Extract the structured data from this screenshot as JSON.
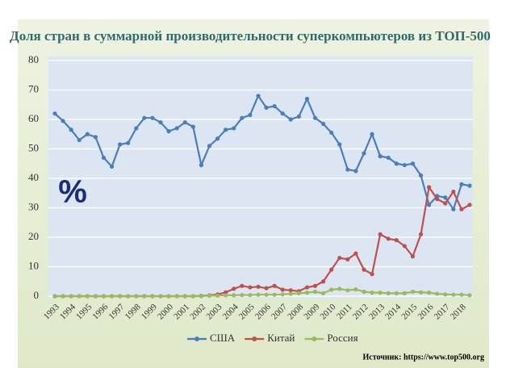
{
  "chart_data": {
    "type": "line",
    "title": "Доля стран в суммарной производительности суперкомпьютеров из ТОП-500",
    "annotation": "%",
    "source": "Источник: https://www.top500.org",
    "categories": [
      "1993",
      null,
      "1994",
      null,
      "1995",
      null,
      "1996",
      null,
      "1997",
      null,
      "1998",
      null,
      "1999",
      null,
      "2000",
      null,
      "2001",
      null,
      "2002",
      null,
      "2003",
      null,
      "2004",
      null,
      "2005",
      null,
      "2006",
      null,
      "2007",
      null,
      "2008",
      null,
      "2009",
      null,
      "2010",
      null,
      "2011",
      null,
      "2012",
      null,
      "2013",
      null,
      "2014",
      null,
      "2015",
      null,
      "2016",
      null,
      "2017",
      null,
      "2018",
      null
    ],
    "series": [
      {
        "name": "США",
        "color": "#4a7ebb",
        "values": [
          62,
          59.5,
          56.5,
          53,
          55,
          54,
          47,
          44,
          51.5,
          52,
          57,
          60.5,
          60.5,
          59,
          56,
          57,
          59,
          57.5,
          44.5,
          51,
          53.5,
          56.5,
          57,
          60.5,
          61.5,
          68,
          64,
          64.5,
          62,
          60,
          61,
          67,
          60.5,
          58.5,
          55.5,
          51.5,
          43,
          42.5,
          48.5,
          55,
          47.5,
          47,
          45,
          44.5,
          45,
          41,
          31,
          34,
          33.5,
          29.5,
          38,
          37.5
        ]
      },
      {
        "name": "Китай",
        "color": "#c0504d",
        "values": [
          0,
          0,
          0,
          0,
          0,
          0,
          0,
          0,
          0,
          0,
          0,
          0,
          0,
          0,
          0,
          0,
          0,
          0,
          0.1,
          0.3,
          0.6,
          1.3,
          2.5,
          3.5,
          3,
          3.2,
          2.7,
          3.5,
          2.2,
          2,
          1.7,
          3,
          3.5,
          5,
          9,
          13,
          12.5,
          14.5,
          9,
          7.5,
          21,
          19.5,
          19,
          17,
          13.5,
          21,
          37,
          33,
          31.5,
          35.5,
          29.5,
          31
        ]
      },
      {
        "name": "Россия",
        "color": "#9bbb59",
        "values": [
          0,
          0,
          0,
          0,
          0,
          0,
          0,
          0,
          0,
          0,
          0,
          0,
          0,
          0,
          0,
          0,
          0,
          0,
          0,
          0.2,
          0.2,
          0.3,
          0.3,
          0.4,
          0.4,
          0.5,
          0.5,
          0.5,
          0.6,
          0.8,
          1,
          1.2,
          1.5,
          1,
          2.2,
          2.5,
          2,
          2.3,
          1.5,
          1.2,
          1.2,
          1,
          1,
          1,
          1.5,
          1.3,
          1.2,
          0.8,
          0.6,
          0.5,
          0.5,
          0.3
        ]
      }
    ],
    "ylim": [
      0,
      80
    ],
    "yticks": [
      0,
      10,
      20,
      30,
      40,
      50,
      60,
      70,
      80
    ],
    "grid": true,
    "legend": "bottom"
  }
}
